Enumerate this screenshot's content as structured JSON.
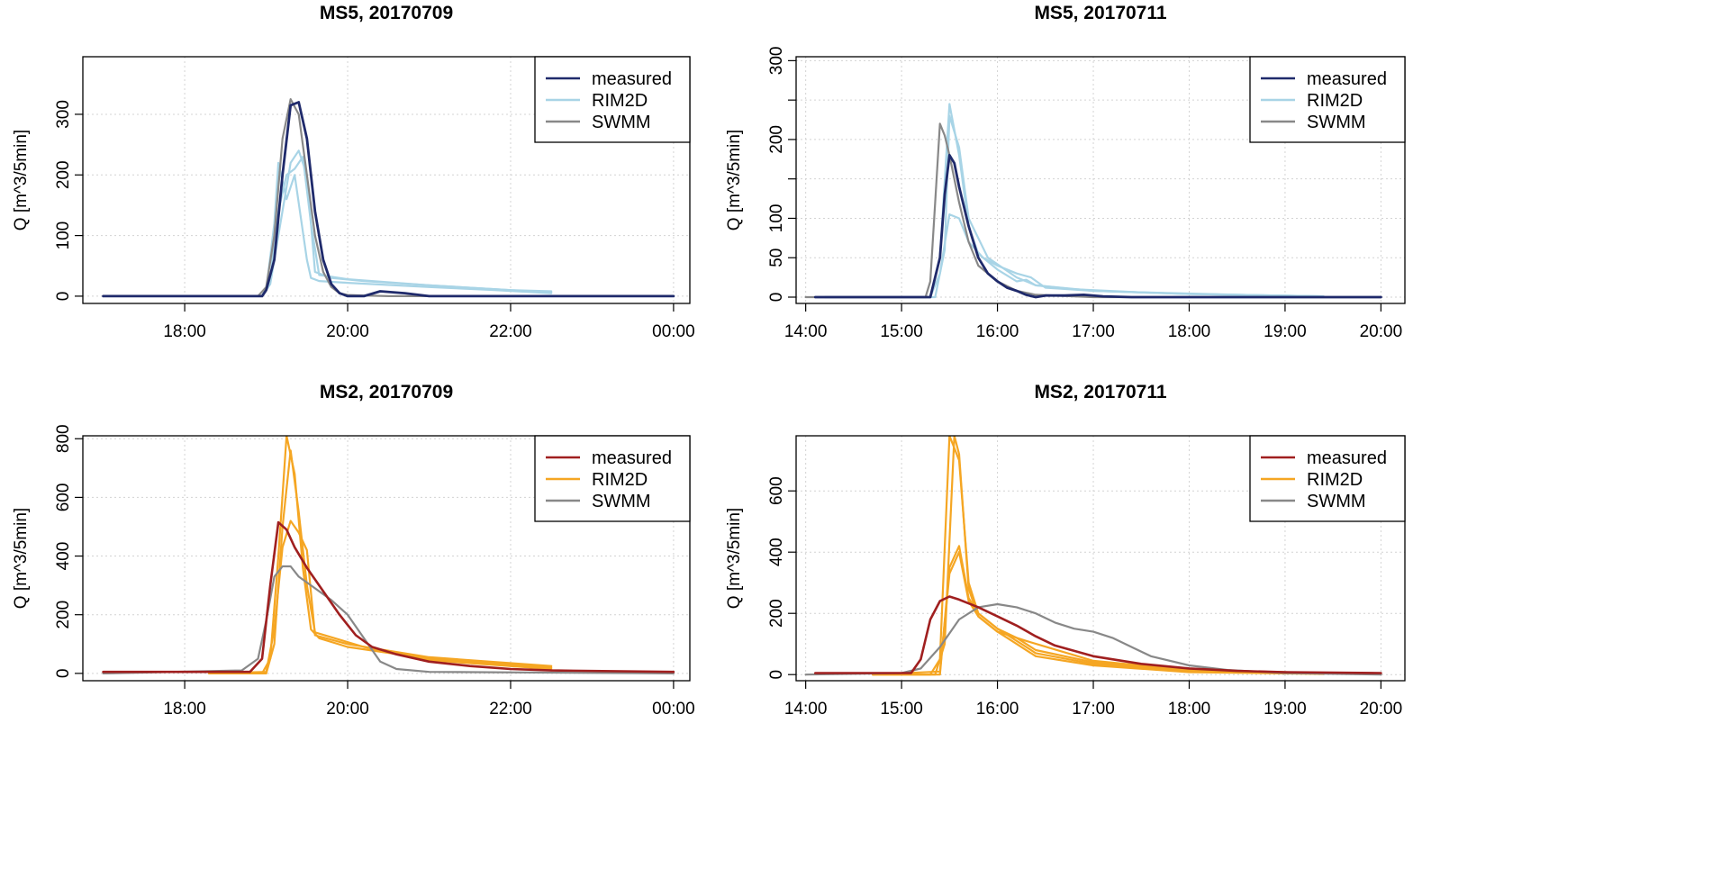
{
  "chart_data": [
    {
      "type": "line",
      "title": "MS5, 20170709",
      "ylabel": "Q [m^3/5min]",
      "xlabel": "",
      "x_unit": "hours since 00:00 of first day",
      "xlim": [
        16.75,
        24.2
      ],
      "ylim": [
        -12,
        395
      ],
      "yticks": [
        0,
        100,
        200,
        300
      ],
      "ytick_labels": [
        "0",
        "100",
        "200",
        "300"
      ],
      "xticks": [
        18,
        20,
        22,
        24
      ],
      "xtick_labels": [
        "18:00",
        "20:00",
        "22:00",
        "00:00"
      ],
      "grid": true,
      "legend_position": "top-right",
      "legend": [
        {
          "label": "measured",
          "color": "#1f2a6b"
        },
        {
          "label": "RIM2D",
          "color": "#a8d4e6"
        },
        {
          "label": "SWMM",
          "color": "#888888"
        }
      ],
      "series": [
        {
          "name": "RIM2D",
          "color": "#a8d4e6",
          "width": 2.2,
          "x": [
            17.0,
            18.95,
            19.0,
            19.1,
            19.15,
            19.25,
            19.35,
            19.5,
            19.55,
            19.65,
            20.0,
            21.0,
            21.8,
            22.5
          ],
          "y": [
            0,
            0,
            10,
            120,
            220,
            160,
            200,
            60,
            30,
            25,
            22,
            15,
            10,
            5
          ]
        },
        {
          "name": "RIM2D",
          "color": "#a8d4e6",
          "width": 2.2,
          "x": [
            17.0,
            18.95,
            19.05,
            19.15,
            19.25,
            19.3,
            19.4,
            19.5,
            19.6,
            19.8,
            20.2,
            21.0,
            22.0,
            22.5
          ],
          "y": [
            0,
            0,
            20,
            100,
            180,
            220,
            240,
            200,
            40,
            30,
            25,
            18,
            10,
            8
          ]
        },
        {
          "name": "RIM2D",
          "color": "#a8d4e6",
          "width": 2.2,
          "x": [
            17.0,
            18.95,
            19.05,
            19.15,
            19.25,
            19.35,
            19.45,
            19.55,
            19.65,
            20.0,
            21.0,
            22.5
          ],
          "y": [
            0,
            0,
            30,
            140,
            200,
            210,
            230,
            120,
            35,
            28,
            18,
            6
          ]
        },
        {
          "name": "SWMM",
          "color": "#888888",
          "width": 2.2,
          "x": [
            17.0,
            18.9,
            19.0,
            19.1,
            19.2,
            19.3,
            19.4,
            19.5,
            19.6,
            19.7,
            19.8,
            19.9,
            20.0,
            20.2,
            20.5,
            24.0
          ],
          "y": [
            0,
            0,
            15,
            100,
            260,
            325,
            300,
            200,
            100,
            40,
            15,
            5,
            2,
            1,
            0,
            0
          ]
        },
        {
          "name": "measured",
          "color": "#1f2a6b",
          "width": 2.8,
          "x": [
            17.0,
            18.95,
            19.0,
            19.1,
            19.2,
            19.3,
            19.4,
            19.5,
            19.6,
            19.7,
            19.8,
            19.9,
            20.0,
            20.2,
            20.4,
            20.7,
            21.0,
            24.0
          ],
          "y": [
            0,
            0,
            10,
            60,
            200,
            315,
            320,
            260,
            140,
            60,
            20,
            5,
            0,
            0,
            8,
            5,
            0,
            0
          ]
        }
      ]
    },
    {
      "type": "line",
      "title": "MS5, 20170711",
      "ylabel": "Q [m^3/5min]",
      "xlabel": "",
      "x_unit": "hours",
      "xlim": [
        13.9,
        20.25
      ],
      "ylim": [
        -8,
        305
      ],
      "yticks": [
        0,
        50,
        100,
        150,
        200,
        250,
        300
      ],
      "ytick_labels": [
        "0",
        "50",
        "100",
        "",
        "200",
        "",
        "300"
      ],
      "xticks": [
        14,
        15,
        16,
        17,
        18,
        19,
        20
      ],
      "xtick_labels": [
        "14:00",
        "15:00",
        "16:00",
        "17:00",
        "18:00",
        "19:00",
        "20:00"
      ],
      "grid": true,
      "legend_position": "top-right",
      "legend": [
        {
          "label": "measured",
          "color": "#1f2a6b"
        },
        {
          "label": "RIM2D",
          "color": "#a8d4e6"
        },
        {
          "label": "SWMM",
          "color": "#888888"
        }
      ],
      "series": [
        {
          "name": "RIM2D",
          "color": "#a8d4e6",
          "width": 2.2,
          "x": [
            14.2,
            15.3,
            15.4,
            15.5,
            15.6,
            15.7,
            15.8,
            16.0,
            16.2,
            16.3,
            16.4,
            16.8,
            17.5,
            18.5,
            19.4
          ],
          "y": [
            0,
            0,
            50,
            245,
            180,
            90,
            55,
            35,
            20,
            22,
            15,
            10,
            6,
            3,
            1
          ]
        },
        {
          "name": "RIM2D",
          "color": "#a8d4e6",
          "width": 2.2,
          "x": [
            14.2,
            15.35,
            15.45,
            15.5,
            15.6,
            15.7,
            15.9,
            16.2,
            16.4,
            17.0,
            18.0,
            19.4
          ],
          "y": [
            0,
            0,
            60,
            230,
            190,
            100,
            50,
            25,
            15,
            8,
            4,
            1
          ]
        },
        {
          "name": "RIM2D",
          "color": "#a8d4e6",
          "width": 2.2,
          "x": [
            14.2,
            15.3,
            15.4,
            15.5,
            15.6,
            15.7,
            15.85,
            16.0,
            16.2,
            16.35,
            16.5,
            17.0,
            18.0,
            19.4
          ],
          "y": [
            0,
            0,
            30,
            105,
            100,
            70,
            50,
            40,
            30,
            25,
            12,
            8,
            4,
            1
          ]
        },
        {
          "name": "SWMM",
          "color": "#888888",
          "width": 2.2,
          "x": [
            14.0,
            15.25,
            15.3,
            15.35,
            15.4,
            15.45,
            15.5,
            15.6,
            15.7,
            15.8,
            16.0,
            16.2,
            16.4,
            17.0,
            20.0
          ],
          "y": [
            0,
            0,
            20,
            120,
            220,
            205,
            180,
            120,
            70,
            40,
            20,
            8,
            3,
            0,
            0
          ]
        },
        {
          "name": "measured",
          "color": "#1f2a6b",
          "width": 2.8,
          "x": [
            14.1,
            15.3,
            15.4,
            15.45,
            15.5,
            15.55,
            15.6,
            15.7,
            15.8,
            15.9,
            16.0,
            16.1,
            16.2,
            16.3,
            16.4,
            16.5,
            16.7,
            16.9,
            17.1,
            17.4,
            20.0
          ],
          "y": [
            0,
            0,
            50,
            130,
            180,
            170,
            140,
            90,
            50,
            30,
            20,
            12,
            8,
            3,
            0,
            2,
            2,
            3,
            1,
            0,
            0
          ]
        }
      ]
    },
    {
      "type": "line",
      "title": "MS2, 20170709",
      "ylabel": "Q [m^3/5min]",
      "xlabel": "",
      "x_unit": "hours since 00:00 of first day",
      "xlim": [
        16.75,
        24.2
      ],
      "ylim": [
        -25,
        810
      ],
      "yticks": [
        0,
        200,
        400,
        600,
        800
      ],
      "ytick_labels": [
        "0",
        "200",
        "400",
        "600",
        "800"
      ],
      "xticks": [
        18,
        20,
        22,
        24
      ],
      "xtick_labels": [
        "18:00",
        "20:00",
        "22:00",
        "00:00"
      ],
      "grid": true,
      "legend_position": "top-right",
      "legend": [
        {
          "label": "measured",
          "color": "#a01f1f"
        },
        {
          "label": "RIM2D",
          "color": "#f5a623"
        },
        {
          "label": "SWMM",
          "color": "#888888"
        }
      ],
      "series": [
        {
          "name": "RIM2D",
          "color": "#f5a623",
          "width": 2.2,
          "x": [
            18.3,
            18.95,
            19.05,
            19.15,
            19.25,
            19.35,
            19.45,
            19.55,
            19.65,
            20.0,
            21.0,
            22.5
          ],
          "y": [
            0,
            0,
            50,
            400,
            810,
            680,
            360,
            150,
            120,
            90,
            50,
            20
          ]
        },
        {
          "name": "RIM2D",
          "color": "#f5a623",
          "width": 2.2,
          "x": [
            18.3,
            19.0,
            19.1,
            19.2,
            19.3,
            19.4,
            19.5,
            19.6,
            20.2,
            21.0,
            22.5
          ],
          "y": [
            0,
            0,
            100,
            500,
            760,
            550,
            300,
            140,
            90,
            45,
            15
          ]
        },
        {
          "name": "RIM2D",
          "color": "#f5a623",
          "width": 2.2,
          "x": [
            18.3,
            19.0,
            19.1,
            19.2,
            19.3,
            19.4,
            19.5,
            19.6,
            20.0,
            21.0,
            22.5
          ],
          "y": [
            0,
            5,
            150,
            430,
            520,
            480,
            420,
            130,
            100,
            55,
            25
          ]
        },
        {
          "name": "SWMM",
          "color": "#888888",
          "width": 2.2,
          "x": [
            17.0,
            18.7,
            18.9,
            19.0,
            19.1,
            19.2,
            19.3,
            19.4,
            19.6,
            19.8,
            20.0,
            20.2,
            20.4,
            20.6,
            21.0,
            24.0
          ],
          "y": [
            0,
            10,
            50,
            180,
            330,
            365,
            365,
            330,
            290,
            250,
            200,
            120,
            40,
            15,
            5,
            0
          ]
        },
        {
          "name": "measured",
          "color": "#a01f1f",
          "width": 2.6,
          "x": [
            17.0,
            18.8,
            18.95,
            19.05,
            19.15,
            19.25,
            19.35,
            19.5,
            19.7,
            19.9,
            20.1,
            20.3,
            20.6,
            21.0,
            21.5,
            22.0,
            22.5,
            24.0
          ],
          "y": [
            5,
            5,
            50,
            300,
            515,
            490,
            430,
            360,
            280,
            200,
            130,
            90,
            65,
            40,
            25,
            15,
            10,
            5
          ]
        }
      ]
    },
    {
      "type": "line",
      "title": "MS2, 20170711",
      "ylabel": "Q [m^3/5min]",
      "xlabel": "",
      "x_unit": "hours",
      "xlim": [
        13.9,
        20.25
      ],
      "ylim": [
        -20,
        780
      ],
      "yticks": [
        0,
        200,
        400,
        600
      ],
      "ytick_labels": [
        "0",
        "200",
        "400",
        "600"
      ],
      "xticks": [
        14,
        15,
        16,
        17,
        18,
        19,
        20
      ],
      "xtick_labels": [
        "14:00",
        "15:00",
        "16:00",
        "17:00",
        "18:00",
        "19:00",
        "20:00"
      ],
      "grid": true,
      "legend_position": "top-right",
      "legend": [
        {
          "label": "measured",
          "color": "#a01f1f"
        },
        {
          "label": "RIM2D",
          "color": "#f5a623"
        },
        {
          "label": "SWMM",
          "color": "#888888"
        }
      ],
      "series": [
        {
          "name": "RIM2D",
          "color": "#f5a623",
          "width": 2.2,
          "x": [
            14.7,
            15.3,
            15.4,
            15.5,
            15.6,
            15.7,
            15.8,
            16.0,
            16.2,
            16.4,
            17.0,
            18.0,
            19.4
          ],
          "y": [
            0,
            0,
            50,
            780,
            700,
            300,
            200,
            150,
            120,
            80,
            40,
            15,
            5
          ]
        },
        {
          "name": "RIM2D",
          "color": "#f5a623",
          "width": 2.2,
          "x": [
            14.7,
            15.35,
            15.45,
            15.55,
            15.6,
            15.7,
            15.8,
            16.0,
            16.3,
            17.0,
            18.0,
            19.4
          ],
          "y": [
            0,
            0,
            100,
            780,
            720,
            280,
            190,
            140,
            110,
            45,
            15,
            5
          ]
        },
        {
          "name": "RIM2D",
          "color": "#f5a623",
          "width": 2.2,
          "x": [
            14.7,
            15.4,
            15.5,
            15.6,
            15.7,
            15.8,
            16.0,
            16.2,
            16.4,
            17.0,
            18.0,
            19.4
          ],
          "y": [
            0,
            0,
            350,
            420,
            250,
            200,
            150,
            110,
            70,
            35,
            10,
            3
          ]
        },
        {
          "name": "RIM2D",
          "color": "#f5a623",
          "width": 2.2,
          "x": [
            14.7,
            15.4,
            15.5,
            15.6,
            15.7,
            15.8,
            16.0,
            16.2,
            16.4,
            17.0,
            18.0,
            19.4
          ],
          "y": [
            0,
            10,
            330,
            400,
            240,
            190,
            140,
            100,
            60,
            30,
            8,
            2
          ]
        },
        {
          "name": "SWMM",
          "color": "#888888",
          "width": 2.2,
          "x": [
            14.0,
            15.0,
            15.2,
            15.4,
            15.6,
            15.8,
            16.0,
            16.2,
            16.4,
            16.6,
            16.8,
            17.0,
            17.2,
            17.4,
            17.6,
            18.0,
            18.4,
            19.0,
            20.0
          ],
          "y": [
            0,
            5,
            20,
            90,
            180,
            220,
            230,
            220,
            200,
            170,
            150,
            140,
            120,
            90,
            60,
            30,
            15,
            5,
            0
          ]
        },
        {
          "name": "measured",
          "color": "#a01f1f",
          "width": 2.6,
          "x": [
            14.1,
            15.1,
            15.2,
            15.3,
            15.4,
            15.5,
            15.6,
            15.8,
            16.0,
            16.2,
            16.4,
            16.6,
            17.0,
            17.5,
            18.0,
            18.5,
            19.0,
            20.0
          ],
          "y": [
            5,
            5,
            50,
            180,
            240,
            255,
            245,
            220,
            190,
            160,
            125,
            95,
            60,
            35,
            20,
            12,
            8,
            5
          ]
        }
      ]
    }
  ]
}
